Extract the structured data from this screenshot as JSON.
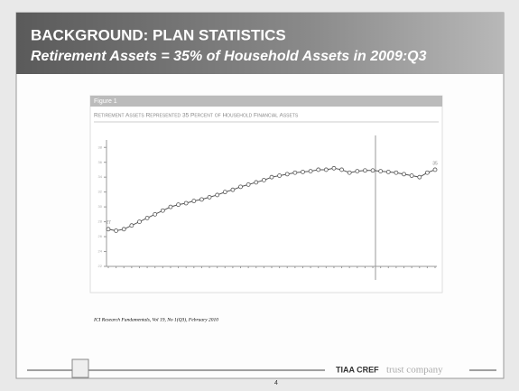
{
  "slide": {
    "title": "BACKGROUND:  PLAN STATISTICS",
    "subtitle": "Retirement Assets = 35% of Household Assets in 2009:Q3"
  },
  "chart_data": {
    "type": "line",
    "label": "Figure 1",
    "title": "Retirement Assets Represented 35 Percent of Household Financial Assets",
    "values": [
      27,
      26.8,
      27,
      27.5,
      28,
      28.5,
      29,
      29.5,
      30,
      30.3,
      30.5,
      30.8,
      31,
      31.3,
      31.6,
      32,
      32.3,
      32.7,
      33,
      33.3,
      33.6,
      34,
      34.2,
      34.4,
      34.6,
      34.7,
      34.8,
      35,
      35,
      35.2,
      35,
      34.6,
      34.8,
      34.9,
      34.9,
      34.8,
      34.7,
      34.6,
      34.4,
      34.2,
      34,
      34.6,
      35
    ],
    "color": "#555555",
    "ylim": [
      22,
      39
    ],
    "yticks": [
      22,
      24,
      26,
      28,
      30,
      32,
      34,
      36,
      38
    ],
    "grid": false
  },
  "footer": {
    "source": "ICI Research Fundamentals, Vol 19, No 1(Q3), February 2010",
    "page": "4",
    "logo": "TIAA CREF",
    "logo_tail": "trust company"
  }
}
